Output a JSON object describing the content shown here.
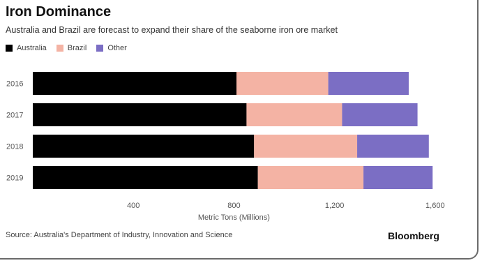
{
  "chart_data": {
    "type": "bar",
    "orientation": "horizontal",
    "stacked": true,
    "title": "Iron Dominance",
    "subtitle": "Australia and Brazil are forecast to expand their share of the seaborne iron ore market",
    "xlabel": "Metric Tons (Millions)",
    "ylabel": "",
    "categories": [
      "2016",
      "2017",
      "2018",
      "2019"
    ],
    "series": [
      {
        "name": "Australia",
        "color": "#000000",
        "values": [
          810,
          850,
          880,
          895
        ]
      },
      {
        "name": "Brazil",
        "color": "#f4b3a4",
        "values": [
          365,
          380,
          410,
          420
        ]
      },
      {
        "name": "Other",
        "color": "#7b6ec4",
        "values": [
          320,
          300,
          285,
          275
        ]
      }
    ],
    "xlim": [
      0,
      1600
    ],
    "xticks": [
      400,
      800,
      1200,
      1600
    ],
    "xtick_labels": [
      "400",
      "800",
      "1,200",
      "1,600"
    ],
    "grid": false,
    "legend_position": "top-left"
  },
  "footer": {
    "source": "Source: Australia's Department of Industry, Innovation and Science",
    "brand": "Bloomberg"
  }
}
